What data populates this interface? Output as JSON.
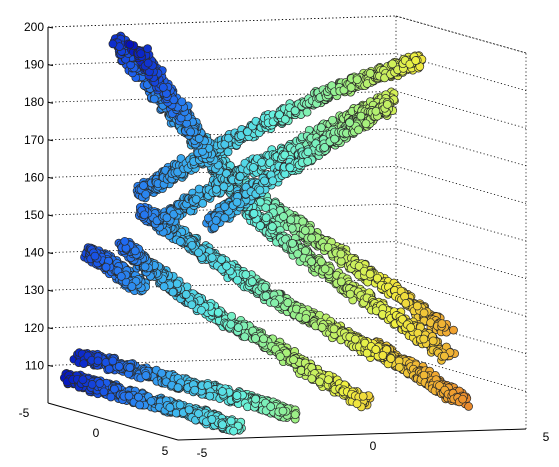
{
  "chart_data": {
    "type": "scatter",
    "title": "",
    "xlabel": "",
    "ylabel": "",
    "zlabel": "",
    "xlim": [
      -5,
      5
    ],
    "ylim": [
      -5,
      5
    ],
    "zlim": [
      100,
      200
    ],
    "grid": true,
    "colormap": [
      "#0000b0",
      "#1e64f0",
      "#3cb4f0",
      "#64f0e0",
      "#a0f080",
      "#f0f040",
      "#f0a030",
      "#d84020"
    ],
    "marker_edge_color": "#2a2a2a",
    "z_ticks": [
      "110",
      "120",
      "130",
      "140",
      "150",
      "160",
      "170",
      "180",
      "190",
      "200"
    ],
    "x_ticks": [
      "-5",
      "0",
      "5"
    ],
    "y_ticks": [
      "-5",
      "0",
      "5"
    ],
    "series": [
      {
        "points": [
          [
            -4.8,
            -3.9,
            140
          ],
          [
            -4.6,
            -3.4,
            137
          ],
          [
            -4.5,
            -3.0,
            134
          ],
          [
            -4.4,
            -2.6,
            131
          ]
        ]
      },
      {
        "points": [
          [
            -4.6,
            -4.6,
            107
          ],
          [
            -4.1,
            -3.6,
            104
          ],
          [
            -3.5,
            -2.6,
            101
          ],
          [
            -2.8,
            -1.5,
            98
          ],
          [
            -2.2,
            -0.6,
            95
          ]
        ]
      },
      {
        "points": [
          [
            -4.2,
            -4.4,
            113
          ],
          [
            -3.4,
            -3.2,
            110
          ],
          [
            -2.6,
            -1.8,
            106
          ],
          [
            -1.8,
            -0.6,
            103
          ],
          [
            -1.1,
            0.6,
            99
          ]
        ]
      },
      {
        "points": [
          [
            -3.3,
            -3.4,
            143
          ],
          [
            -3.8,
            -2.6,
            137
          ],
          [
            -3.9,
            -1.6,
            130
          ],
          [
            -3.6,
            -0.6,
            123
          ],
          [
            -2.8,
            0.6,
            116
          ],
          [
            -1.8,
            1.6,
            108
          ],
          [
            -0.9,
            2.6,
            102
          ]
        ]
      },
      {
        "points": [
          [
            -2.4,
            -3.2,
            153
          ],
          [
            -2.6,
            -2.4,
            148
          ],
          [
            -2.4,
            -1.4,
            141
          ],
          [
            -1.8,
            -0.4,
            134
          ],
          [
            -1.0,
            0.6,
            127
          ],
          [
            0.2,
            1.6,
            121
          ],
          [
            1.2,
            2.6,
            115
          ]
        ]
      },
      {
        "points": [
          [
            -1.8,
            -4.2,
            200
          ],
          [
            -2.2,
            -3.4,
            190
          ],
          [
            -2.0,
            -2.4,
            178
          ],
          [
            -1.4,
            -1.4,
            166
          ],
          [
            -0.8,
            -0.6,
            158
          ],
          [
            -0.2,
            0.4,
            150
          ],
          [
            0.8,
            1.4,
            142
          ],
          [
            2.0,
            2.4,
            134
          ],
          [
            3.2,
            3.4,
            125
          ]
        ]
      },
      {
        "points": [
          [
            0.6,
            -4.6,
            200
          ],
          [
            0.4,
            -3.6,
            188
          ],
          [
            -0.2,
            -2.6,
            176
          ],
          [
            -0.8,
            -1.6,
            164
          ],
          [
            -0.6,
            -0.6,
            152
          ],
          [
            0.2,
            0.4,
            143
          ],
          [
            1.4,
            1.4,
            134
          ],
          [
            2.8,
            2.4,
            126
          ],
          [
            3.8,
            3.2,
            119
          ]
        ]
      },
      {
        "points": [
          [
            -3.2,
            -3.0,
            157
          ],
          [
            -2.0,
            -2.4,
            164
          ],
          [
            -0.6,
            -1.6,
            172
          ],
          [
            0.8,
            -0.6,
            180
          ],
          [
            2.2,
            0.4,
            188
          ],
          [
            3.4,
            1.4,
            194
          ],
          [
            4.2,
            2.2,
            198
          ]
        ]
      },
      {
        "points": [
          [
            -2.4,
            -2.8,
            150
          ],
          [
            -1.2,
            -2.0,
            158
          ],
          [
            0.2,
            -1.2,
            166
          ],
          [
            1.6,
            -0.2,
            174
          ],
          [
            2.8,
            0.8,
            182
          ],
          [
            3.8,
            1.6,
            188
          ]
        ]
      },
      {
        "points": [
          [
            1.2,
            -2.6,
            153
          ],
          [
            1.4,
            -1.8,
            160
          ],
          [
            1.8,
            -1.0,
            166
          ],
          [
            2.6,
            -0.2,
            173
          ],
          [
            3.4,
            0.6,
            180
          ],
          [
            4.0,
            1.4,
            186
          ]
        ]
      },
      {
        "points": [
          [
            -0.4,
            2.6,
            118
          ],
          [
            1.0,
            3.0,
            114
          ],
          [
            2.4,
            3.4,
            110
          ],
          [
            3.4,
            3.8,
            106
          ]
        ]
      }
    ]
  }
}
